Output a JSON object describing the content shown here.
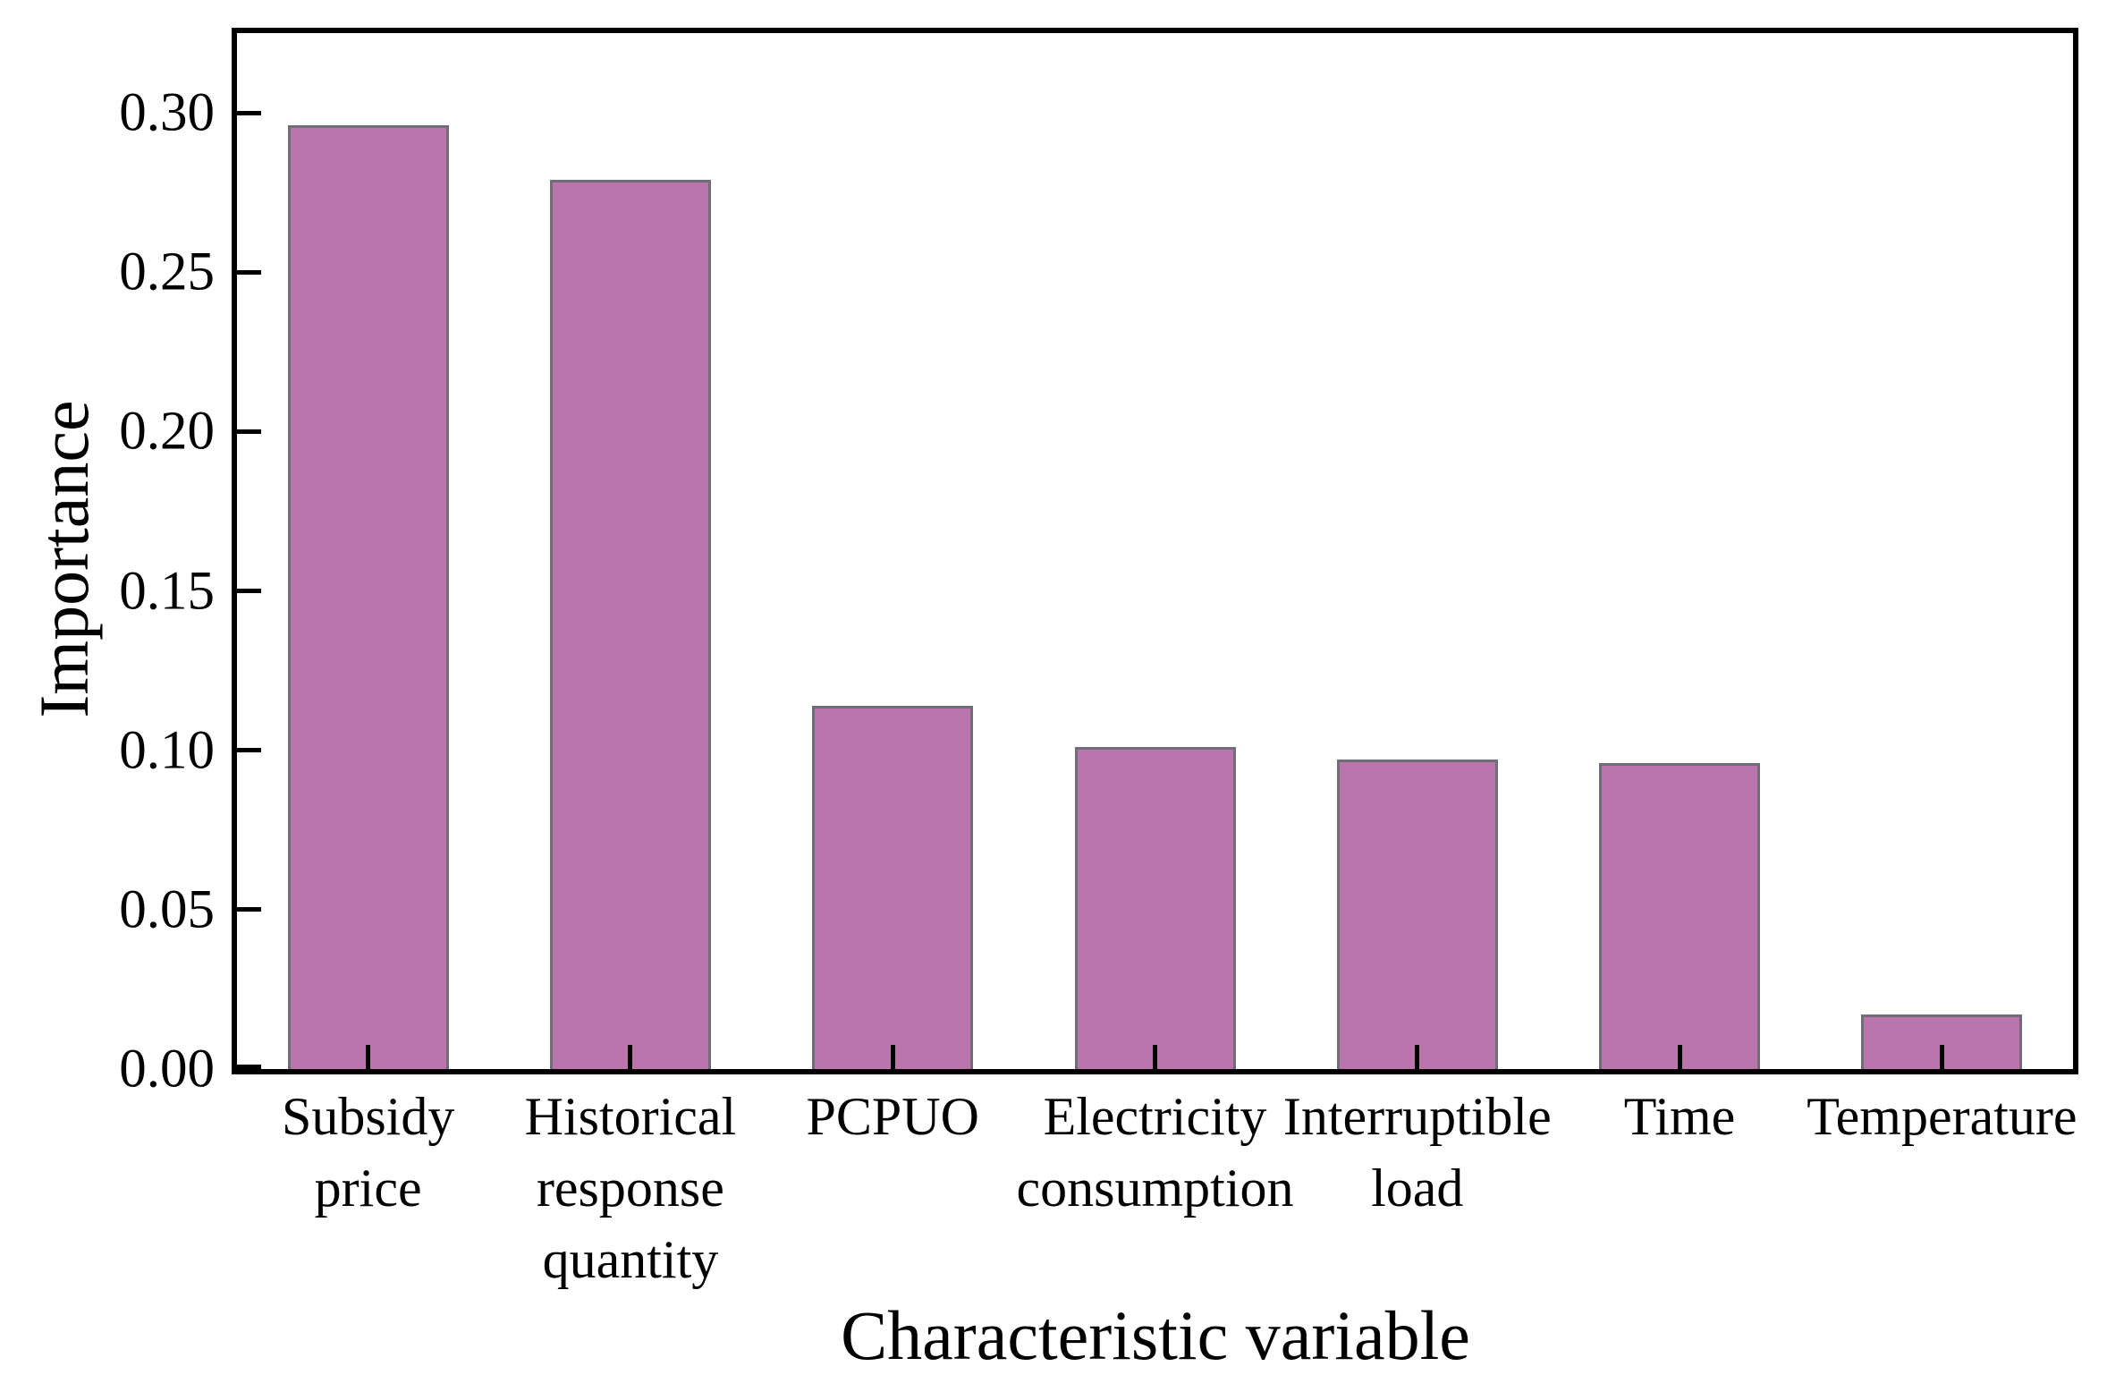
{
  "chart_data": {
    "type": "bar",
    "title": "",
    "xlabel": "Characteristic variable",
    "ylabel": "Importance",
    "categories": [
      "Subsidy price",
      "Historical response quantity",
      "PCPUO",
      "Electricity consumption",
      "Interruptible load",
      "Time",
      "Temperature"
    ],
    "values": [
      0.296,
      0.279,
      0.114,
      0.101,
      0.097,
      0.096,
      0.017
    ],
    "ylim": [
      0,
      0.325
    ],
    "yticks": [
      {
        "label": "0.00",
        "value": 0.0
      },
      {
        "label": "0.05",
        "value": 0.05
      },
      {
        "label": "0.10",
        "value": 0.1
      },
      {
        "label": "0.15",
        "value": 0.15
      },
      {
        "label": "0.20",
        "value": 0.2
      },
      {
        "label": "0.25",
        "value": 0.25
      },
      {
        "label": "0.30",
        "value": 0.3
      }
    ],
    "grid": false,
    "legend": null,
    "tick_direction": "in",
    "bar_color": "#ba75ad",
    "bar_edge_color": "#716c75",
    "axis_color": "#000000",
    "background_color": "#ffffff"
  }
}
